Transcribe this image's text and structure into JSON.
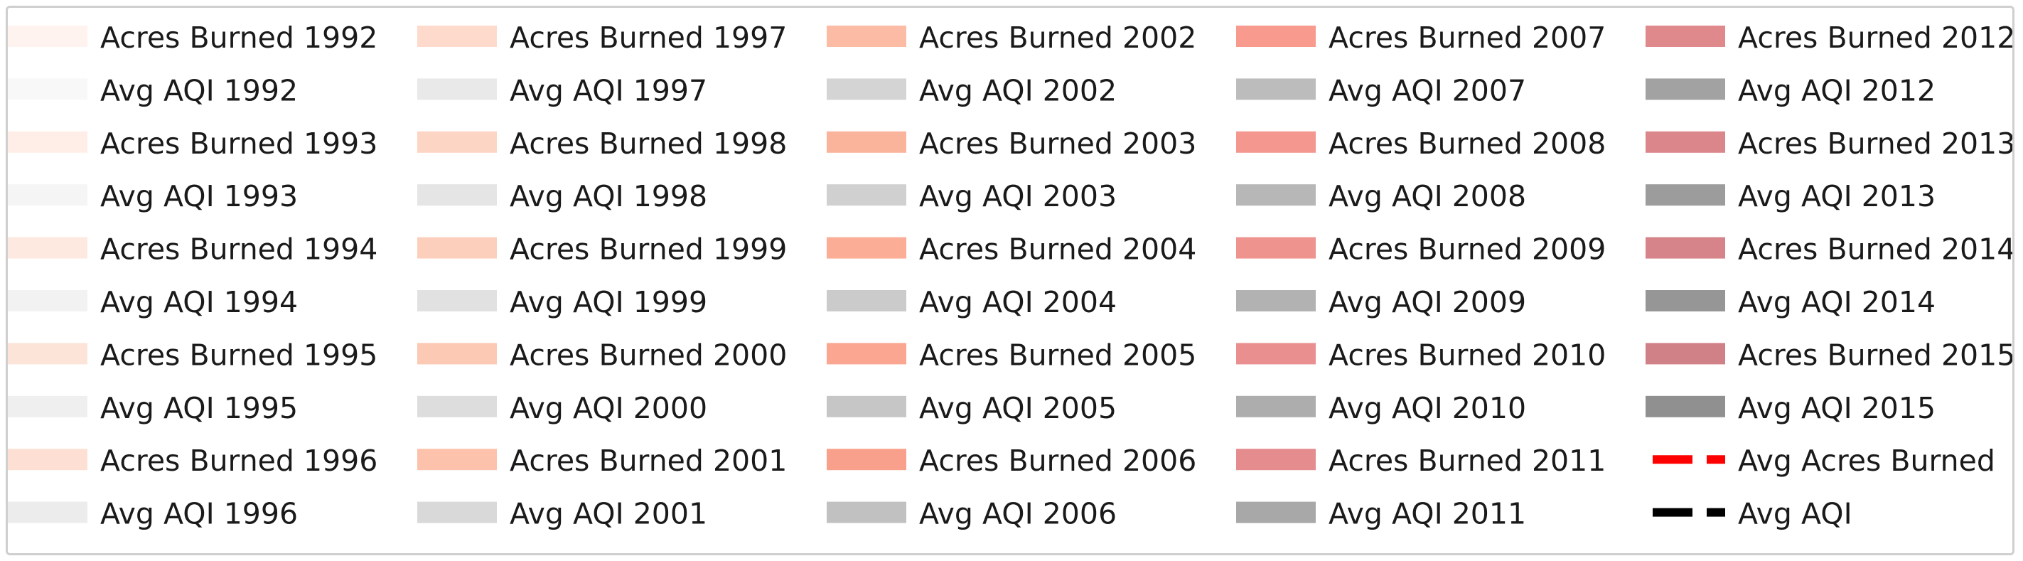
{
  "chart_data": {
    "type": "legend",
    "legend": {
      "columns": [
        [
          {
            "label": "Acres Burned 1992",
            "color": "#fef3ee",
            "kind": "patch"
          },
          {
            "label": "Avg AQI 1992",
            "color": "#f8f8f8",
            "kind": "patch"
          },
          {
            "label": "Acres Burned 1993",
            "color": "#feeee7",
            "kind": "patch"
          },
          {
            "label": "Avg AQI 1993",
            "color": "#f5f5f5",
            "kind": "patch"
          },
          {
            "label": "Acres Burned 1994",
            "color": "#fde9e0",
            "kind": "patch"
          },
          {
            "label": "Avg AQI 1994",
            "color": "#f2f2f2",
            "kind": "patch"
          },
          {
            "label": "Acres Burned 1995",
            "color": "#fde4d9",
            "kind": "patch"
          },
          {
            "label": "Avg AQI 1995",
            "color": "#efefef",
            "kind": "patch"
          },
          {
            "label": "Acres Burned 1996",
            "color": "#fde0d3",
            "kind": "patch"
          },
          {
            "label": "Avg AQI 1996",
            "color": "#ececec",
            "kind": "patch"
          }
        ],
        [
          {
            "label": "Acres Burned 1997",
            "color": "#fddacb",
            "kind": "patch"
          },
          {
            "label": "Avg AQI 1997",
            "color": "#e9e9e9",
            "kind": "patch"
          },
          {
            "label": "Acres Burned 1998",
            "color": "#fdd5c4",
            "kind": "patch"
          },
          {
            "label": "Avg AQI 1998",
            "color": "#e5e5e5",
            "kind": "patch"
          },
          {
            "label": "Acres Burned 1999",
            "color": "#fccfbc",
            "kind": "patch"
          },
          {
            "label": "Avg AQI 1999",
            "color": "#e1e1e1",
            "kind": "patch"
          },
          {
            "label": "Acres Burned 2000",
            "color": "#fcc9b4",
            "kind": "patch"
          },
          {
            "label": "Avg AQI 2000",
            "color": "#dddddd",
            "kind": "patch"
          },
          {
            "label": "Acres Burned 2001",
            "color": "#fcc2ac",
            "kind": "patch"
          },
          {
            "label": "Avg AQI 2001",
            "color": "#d9d9d9",
            "kind": "patch"
          }
        ],
        [
          {
            "label": "Acres Burned 2002",
            "color": "#fcbba4",
            "kind": "patch"
          },
          {
            "label": "Avg AQI 2002",
            "color": "#d4d4d4",
            "kind": "patch"
          },
          {
            "label": "Acres Burned 2003",
            "color": "#fbb49c",
            "kind": "patch"
          },
          {
            "label": "Avg AQI 2003",
            "color": "#d0d0d0",
            "kind": "patch"
          },
          {
            "label": "Acres Burned 2004",
            "color": "#fbad95",
            "kind": "patch"
          },
          {
            "label": "Avg AQI 2004",
            "color": "#cbcbcb",
            "kind": "patch"
          },
          {
            "label": "Acres Burned 2005",
            "color": "#fba690",
            "kind": "patch"
          },
          {
            "label": "Avg AQI 2005",
            "color": "#c6c6c6",
            "kind": "patch"
          },
          {
            "label": "Acres Burned 2006",
            "color": "#f9a08c",
            "kind": "patch"
          },
          {
            "label": "Avg AQI 2006",
            "color": "#c1c1c1",
            "kind": "patch"
          }
        ],
        [
          {
            "label": "Acres Burned 2007",
            "color": "#f89b8e",
            "kind": "patch"
          },
          {
            "label": "Avg AQI 2007",
            "color": "#bcbcbc",
            "kind": "patch"
          },
          {
            "label": "Acres Burned 2008",
            "color": "#f4978e",
            "kind": "patch"
          },
          {
            "label": "Avg AQI 2008",
            "color": "#b7b7b7",
            "kind": "patch"
          },
          {
            "label": "Acres Burned 2009",
            "color": "#ef938f",
            "kind": "patch"
          },
          {
            "label": "Avg AQI 2009",
            "color": "#b2b2b2",
            "kind": "patch"
          },
          {
            "label": "Acres Burned 2010",
            "color": "#ea8f8f",
            "kind": "patch"
          },
          {
            "label": "Avg AQI 2010",
            "color": "#adadad",
            "kind": "patch"
          },
          {
            "label": "Acres Burned 2011",
            "color": "#e58c8e",
            "kind": "patch"
          },
          {
            "label": "Avg AQI 2011",
            "color": "#a8a8a8",
            "kind": "patch"
          }
        ],
        [
          {
            "label": "Acres Burned 2012",
            "color": "#e0898d",
            "kind": "patch"
          },
          {
            "label": "Avg AQI 2012",
            "color": "#a2a2a2",
            "kind": "patch"
          },
          {
            "label": "Acres Burned 2013",
            "color": "#db868b",
            "kind": "patch"
          },
          {
            "label": "Avg AQI 2013",
            "color": "#9c9c9c",
            "kind": "patch"
          },
          {
            "label": "Acres Burned 2014",
            "color": "#d68389",
            "kind": "patch"
          },
          {
            "label": "Avg AQI 2014",
            "color": "#969696",
            "kind": "patch"
          },
          {
            "label": "Acres Burned 2015",
            "color": "#d08087",
            "kind": "patch"
          },
          {
            "label": "Avg AQI 2015",
            "color": "#909090",
            "kind": "patch"
          },
          {
            "label": "Avg Acres Burned",
            "color": "#ff0000",
            "kind": "dashed-line"
          },
          {
            "label": "Avg AQI",
            "color": "#000000",
            "kind": "dashed-line"
          }
        ]
      ]
    }
  }
}
